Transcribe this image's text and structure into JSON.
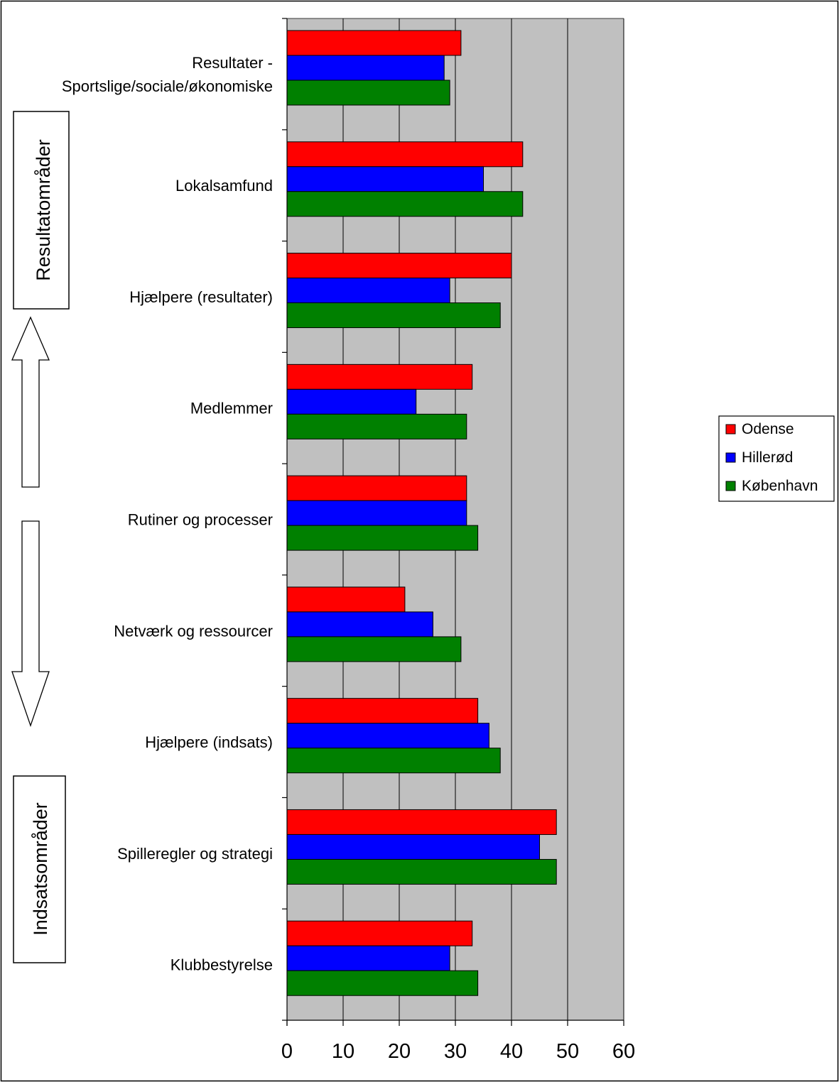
{
  "chart_data": {
    "type": "bar",
    "orientation": "horizontal",
    "categories": [
      "Resultater -\nSportslige/sociale/økonomiske",
      "Lokalsamfund",
      "Hjælpere (resultater)",
      "Medlemmer",
      "Rutiner og processer",
      "Netværk og ressourcer",
      "Hjælpere (indsats)",
      "Spilleregler og strategi",
      "Klubbestyrelse"
    ],
    "series": [
      {
        "name": "Odense",
        "color": "#ff0000",
        "values": [
          31,
          42,
          40,
          33,
          32,
          21,
          34,
          48,
          33
        ]
      },
      {
        "name": "Hillerød",
        "color": "#0000ff",
        "values": [
          28,
          35,
          29,
          23,
          32,
          26,
          36,
          45,
          29
        ]
      },
      {
        "name": "København",
        "color": "#008000",
        "values": [
          29,
          42,
          38,
          32,
          34,
          31,
          38,
          48,
          34
        ]
      }
    ],
    "xlim": [
      0,
      60
    ],
    "xticks": [
      "0",
      "10",
      "20",
      "30",
      "40",
      "50",
      "60"
    ],
    "grid": true,
    "plot_background": "#c0c0c0",
    "legend_position": "right"
  },
  "side_labels": {
    "top": "Resultatområder",
    "bottom": "Indsatsområder"
  }
}
